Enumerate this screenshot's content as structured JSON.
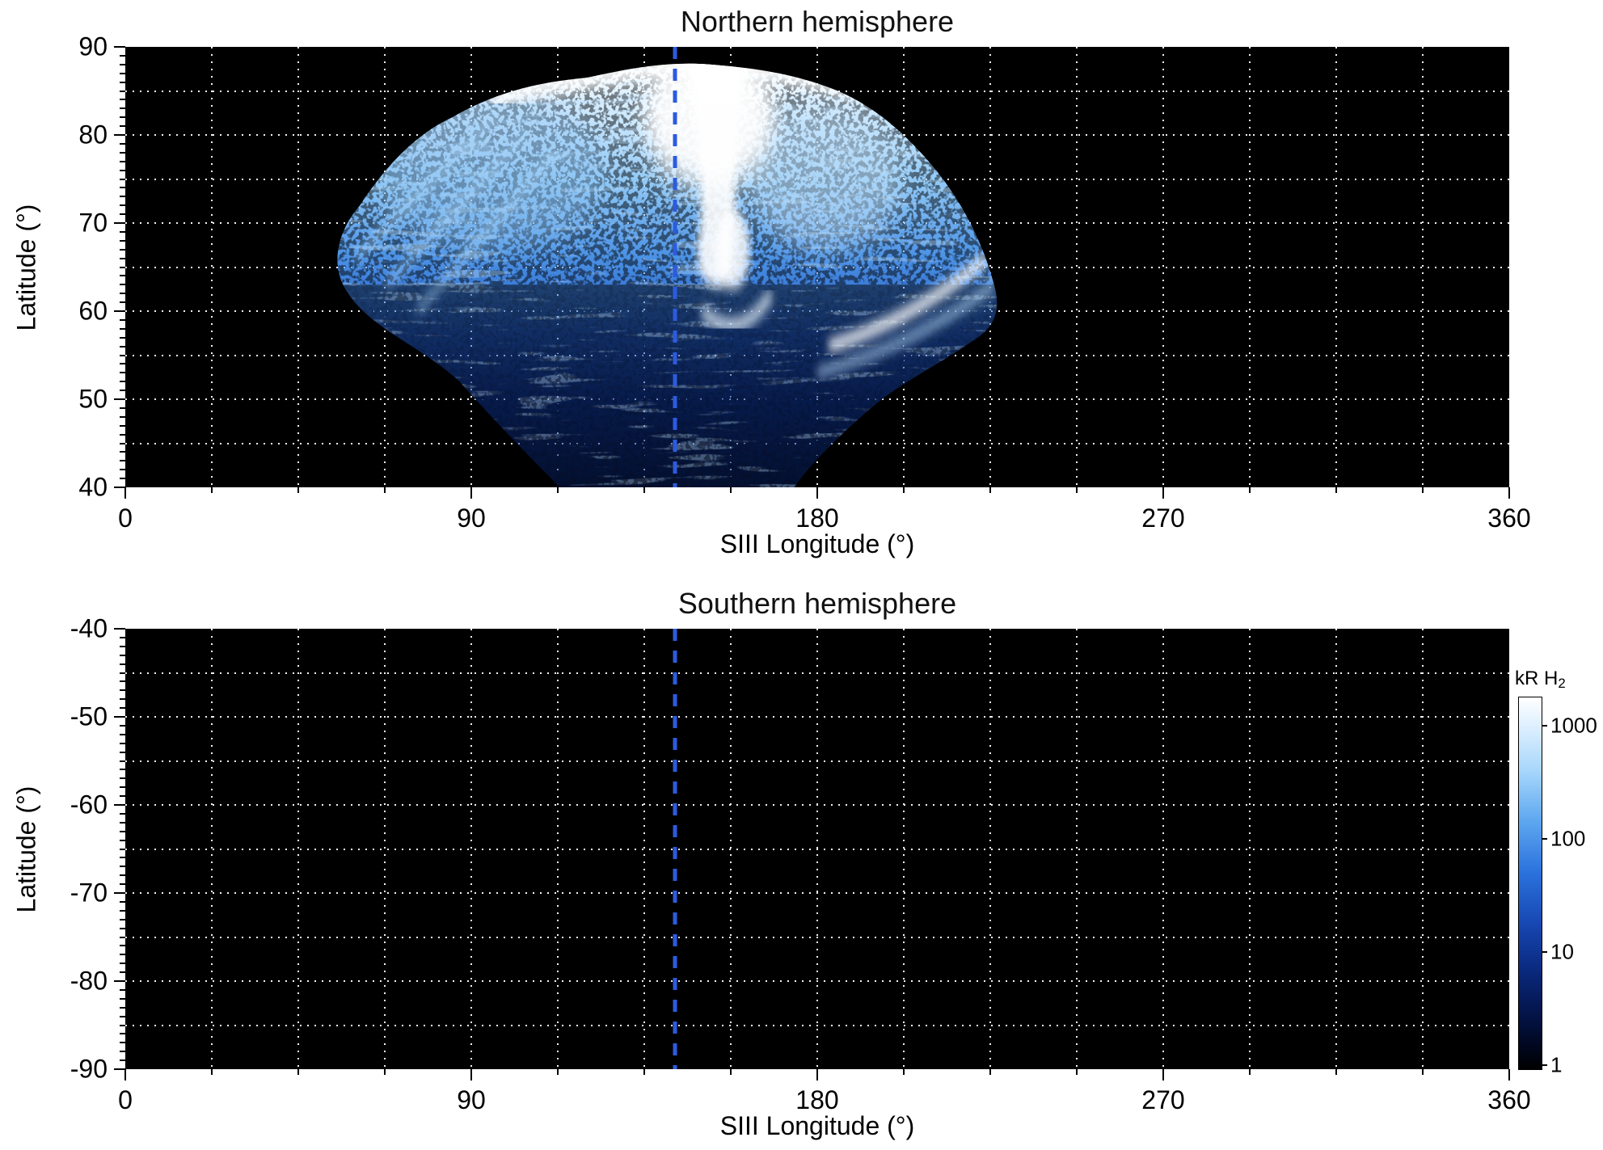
{
  "chart_data": {
    "type": "heatmap",
    "description": "Two-panel polar-projection map of H2 auroral emission brightness versus SIII longitude and latitude; logarithmic blue colormap on black background",
    "panels": [
      {
        "title": "Northern hemisphere",
        "xlabel": "SIII Longitude (°)",
        "ylabel": "Latitude (°)",
        "xlim": [
          0,
          360
        ],
        "ylim": [
          40,
          90
        ],
        "xticks": [
          0,
          90,
          180,
          270,
          360
        ],
        "yticks": [
          90,
          80,
          70,
          60,
          50,
          40
        ],
        "x_minor_step": 22.5,
        "y_minor_step": 1,
        "grid": {
          "x_step": 22.5,
          "y_step": 5,
          "style": "dotted",
          "color": "#ffffff"
        },
        "reference_line": {
          "longitude": 143,
          "style": "dashed",
          "color": "#2c5be0",
          "label": "central-meridian-longitude"
        },
        "emission": {
          "present": true,
          "longitude_extent": [
            55,
            228
          ],
          "latitude_extent": [
            40,
            88
          ],
          "bright_core": {
            "longitude_range": [
              135,
              170
            ],
            "latitude_range": [
              62,
              88
            ],
            "approx_value_kR": 1000
          },
          "diffuse_region_kR": [
            1,
            100
          ],
          "notes": "Fan-shaped swath widest near latitude 60; speckled faint emission below latitude 55; bright white core and swirl near 150° longitude; thin bright arcs near 185-225° longitude at 58-66° latitude"
        }
      },
      {
        "title": "Southern hemisphere",
        "xlabel": "SIII Longitude (°)",
        "ylabel": "Latitude (°)",
        "xlim": [
          -90,
          -40
        ],
        "ylim": [
          -90,
          -40
        ],
        "xlim_lon": [
          0,
          360
        ],
        "xticks": [
          0,
          90,
          180,
          270,
          360
        ],
        "yticks": [
          -40,
          -50,
          -60,
          -70,
          -80,
          -90
        ],
        "x_minor_step": 22.5,
        "y_minor_step": 1,
        "grid": {
          "x_step": 22.5,
          "y_step": 5,
          "style": "dotted",
          "color": "#ffffff"
        },
        "reference_line": {
          "longitude": 143,
          "style": "dashed",
          "color": "#2c5be0",
          "label": "central-meridian-longitude"
        },
        "emission": {
          "present": false,
          "notes": "No data; entirely black"
        }
      }
    ],
    "colorbar": {
      "label_main": "kR H",
      "label_sub": "2",
      "scale": "log",
      "ticks": [
        1000,
        100,
        10,
        1
      ],
      "range": [
        0.9,
        1800
      ],
      "gradient": [
        "#ffffff 0%",
        "#ddeffe 8%",
        "#a6d6fb 20%",
        "#5fa8f0 33%",
        "#2b72dd 47%",
        "#1747b2 61%",
        "#0a2a80 73%",
        "#04164e 84%",
        "#010823 93%",
        "#000000 100%"
      ]
    }
  }
}
